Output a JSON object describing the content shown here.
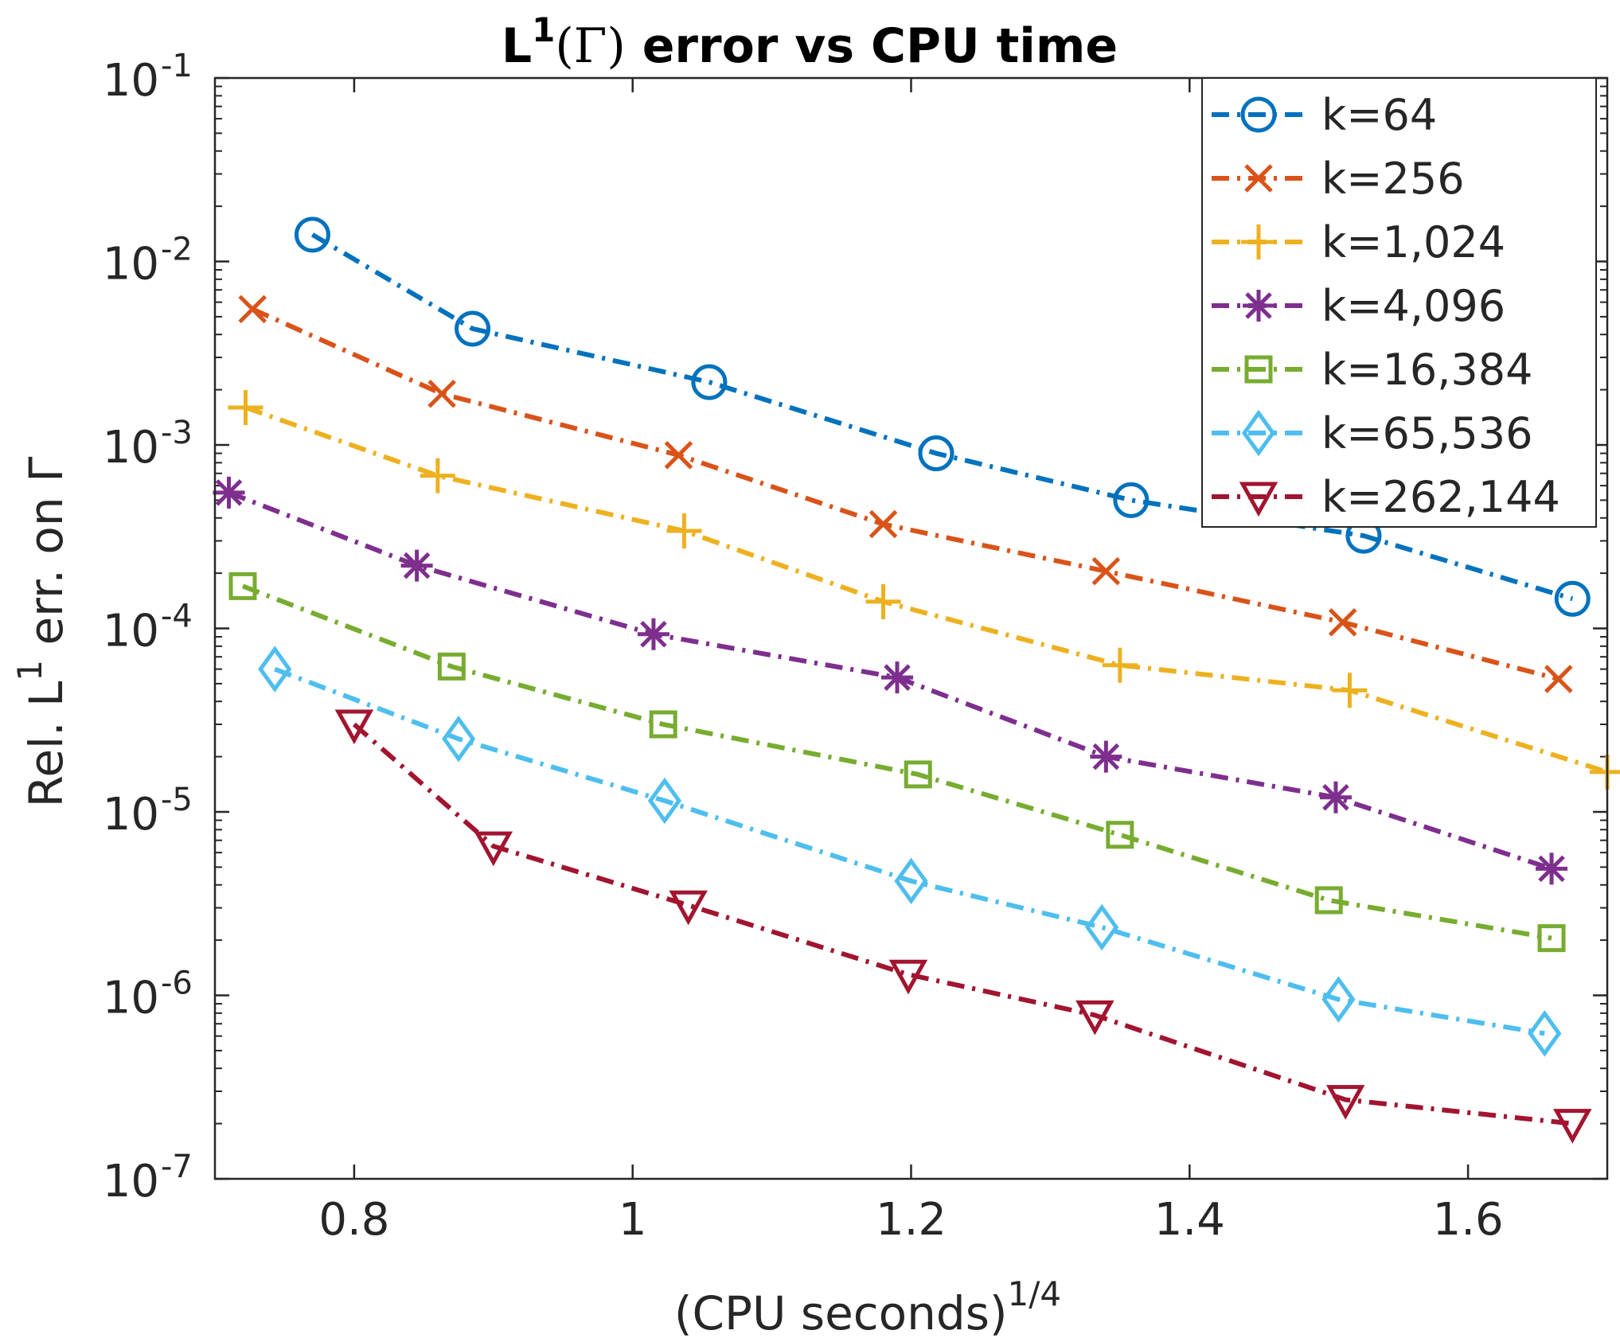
{
  "chart_data": {
    "type": "line",
    "title": {
      "main": "L",
      "main_sup": "1",
      "gamma": "(Γ)",
      "rest": " error vs CPU time"
    },
    "xlabel": {
      "main": "(CPU seconds)",
      "sup": "1/4"
    },
    "ylabel": {
      "prefix": "Rel. L",
      "sup": "1",
      "suffix": " err. on Γ"
    },
    "xlim": [
      0.7,
      1.7
    ],
    "ylim_log10": [
      -7,
      -1
    ],
    "yscale": "log",
    "x_ticks": [
      0.8,
      1.0,
      1.2,
      1.4,
      1.6
    ],
    "x_tick_labels": [
      "0.8",
      "1",
      "1.2",
      "1.4",
      "1.6"
    ],
    "y_ticks_exp": [
      -1,
      -2,
      -3,
      -4,
      -5,
      -6,
      -7
    ],
    "y_tick_labels": [
      {
        "base": "10",
        "exp": "-1"
      },
      {
        "base": "10",
        "exp": "-2"
      },
      {
        "base": "10",
        "exp": "-3"
      },
      {
        "base": "10",
        "exp": "-4"
      },
      {
        "base": "10",
        "exp": "-5"
      },
      {
        "base": "10",
        "exp": "-6"
      },
      {
        "base": "10",
        "exp": "-7"
      }
    ],
    "grid": false,
    "legend_position": "top-right",
    "series": [
      {
        "name": "k=64",
        "color": "#0072BD",
        "marker": "circle",
        "x": [
          0.77,
          0.885,
          1.055,
          1.218,
          1.358,
          1.525,
          1.675
        ],
        "y": [
          0.014,
          0.0043,
          0.0022,
          0.0009,
          0.0005,
          0.00032,
          0.000145
        ]
      },
      {
        "name": "k=256",
        "color": "#D95319",
        "marker": "x",
        "x": [
          0.727,
          0.863,
          1.033,
          1.18,
          1.34,
          1.51,
          1.665
        ],
        "y": [
          0.0055,
          0.0019,
          0.00088,
          0.00037,
          0.000205,
          0.000108,
          5.3e-05
        ]
      },
      {
        "name": "k=1,024",
        "color": "#EDB120",
        "marker": "plus",
        "x": [
          0.722,
          0.86,
          1.037,
          1.18,
          1.35,
          1.515,
          1.7
        ],
        "y": [
          0.0016,
          0.00068,
          0.00034,
          0.00014,
          6.3e-05,
          4.6e-05,
          1.65e-05
        ]
      },
      {
        "name": "k=4,096",
        "color": "#7E2F8E",
        "marker": "star",
        "x": [
          0.71,
          0.845,
          1.015,
          1.19,
          1.34,
          1.505,
          1.66
        ],
        "y": [
          0.00055,
          0.00022,
          9.3e-05,
          5.4e-05,
          2e-05,
          1.2e-05,
          4.9e-06
        ]
      },
      {
        "name": "k=16,384",
        "color": "#77AC30",
        "marker": "square",
        "x": [
          0.72,
          0.87,
          1.022,
          1.205,
          1.35,
          1.5,
          1.66
        ],
        "y": [
          0.00017,
          6.2e-05,
          3e-05,
          1.6e-05,
          7.5e-06,
          3.3e-06,
          2.05e-06
        ]
      },
      {
        "name": "k=65,536",
        "color": "#4DBEEE",
        "marker": "diamond",
        "x": [
          0.743,
          0.875,
          1.023,
          1.2,
          1.337,
          1.507,
          1.655
        ],
        "y": [
          6e-05,
          2.5e-05,
          1.15e-05,
          4.2e-06,
          2.35e-06,
          9.5e-07,
          6.2e-07
        ]
      },
      {
        "name": "k=262,144",
        "color": "#A2142F",
        "marker": "triangle-down",
        "x": [
          0.8,
          0.9,
          1.04,
          1.198,
          1.332,
          1.512,
          1.675
        ],
        "y": [
          3e-05,
          6.5e-06,
          3.1e-06,
          1.3e-06,
          7.8e-07,
          2.7e-07,
          2e-07
        ]
      }
    ]
  }
}
